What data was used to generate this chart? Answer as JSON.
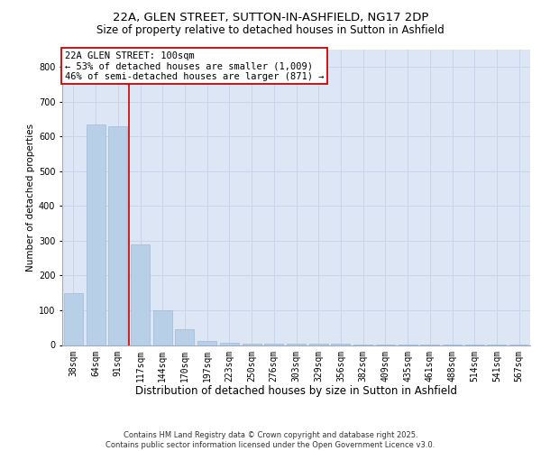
{
  "title_line1": "22A, GLEN STREET, SUTTON-IN-ASHFIELD, NG17 2DP",
  "title_line2": "Size of property relative to detached houses in Sutton in Ashfield",
  "xlabel": "Distribution of detached houses by size in Sutton in Ashfield",
  "ylabel": "Number of detached properties",
  "categories": [
    "38sqm",
    "64sqm",
    "91sqm",
    "117sqm",
    "144sqm",
    "170sqm",
    "197sqm",
    "223sqm",
    "250sqm",
    "276sqm",
    "303sqm",
    "329sqm",
    "356sqm",
    "382sqm",
    "409sqm",
    "435sqm",
    "461sqm",
    "488sqm",
    "514sqm",
    "541sqm",
    "567sqm"
  ],
  "values": [
    150,
    635,
    630,
    290,
    100,
    45,
    12,
    7,
    5,
    5,
    4,
    3,
    3,
    2,
    2,
    2,
    1,
    1,
    1,
    1,
    1
  ],
  "bar_color": "#b8cfe8",
  "bar_edge_color": "#b8cfe8",
  "grid_color": "#c8d4e8",
  "background_color": "#dce6f5",
  "vline_x": 2.5,
  "vline_color": "#cc0000",
  "annotation_text": "22A GLEN STREET: 100sqm\n← 53% of detached houses are smaller (1,009)\n46% of semi-detached houses are larger (871) →",
  "ylim": [
    0,
    850
  ],
  "yticks": [
    0,
    100,
    200,
    300,
    400,
    500,
    600,
    700,
    800
  ],
  "footer": "Contains HM Land Registry data © Crown copyright and database right 2025.\nContains public sector information licensed under the Open Government Licence v3.0.",
  "title_fontsize": 9.5,
  "subtitle_fontsize": 8.5,
  "tick_fontsize": 7,
  "xlabel_fontsize": 8.5,
  "ylabel_fontsize": 7.5,
  "annotation_fontsize": 7.5
}
